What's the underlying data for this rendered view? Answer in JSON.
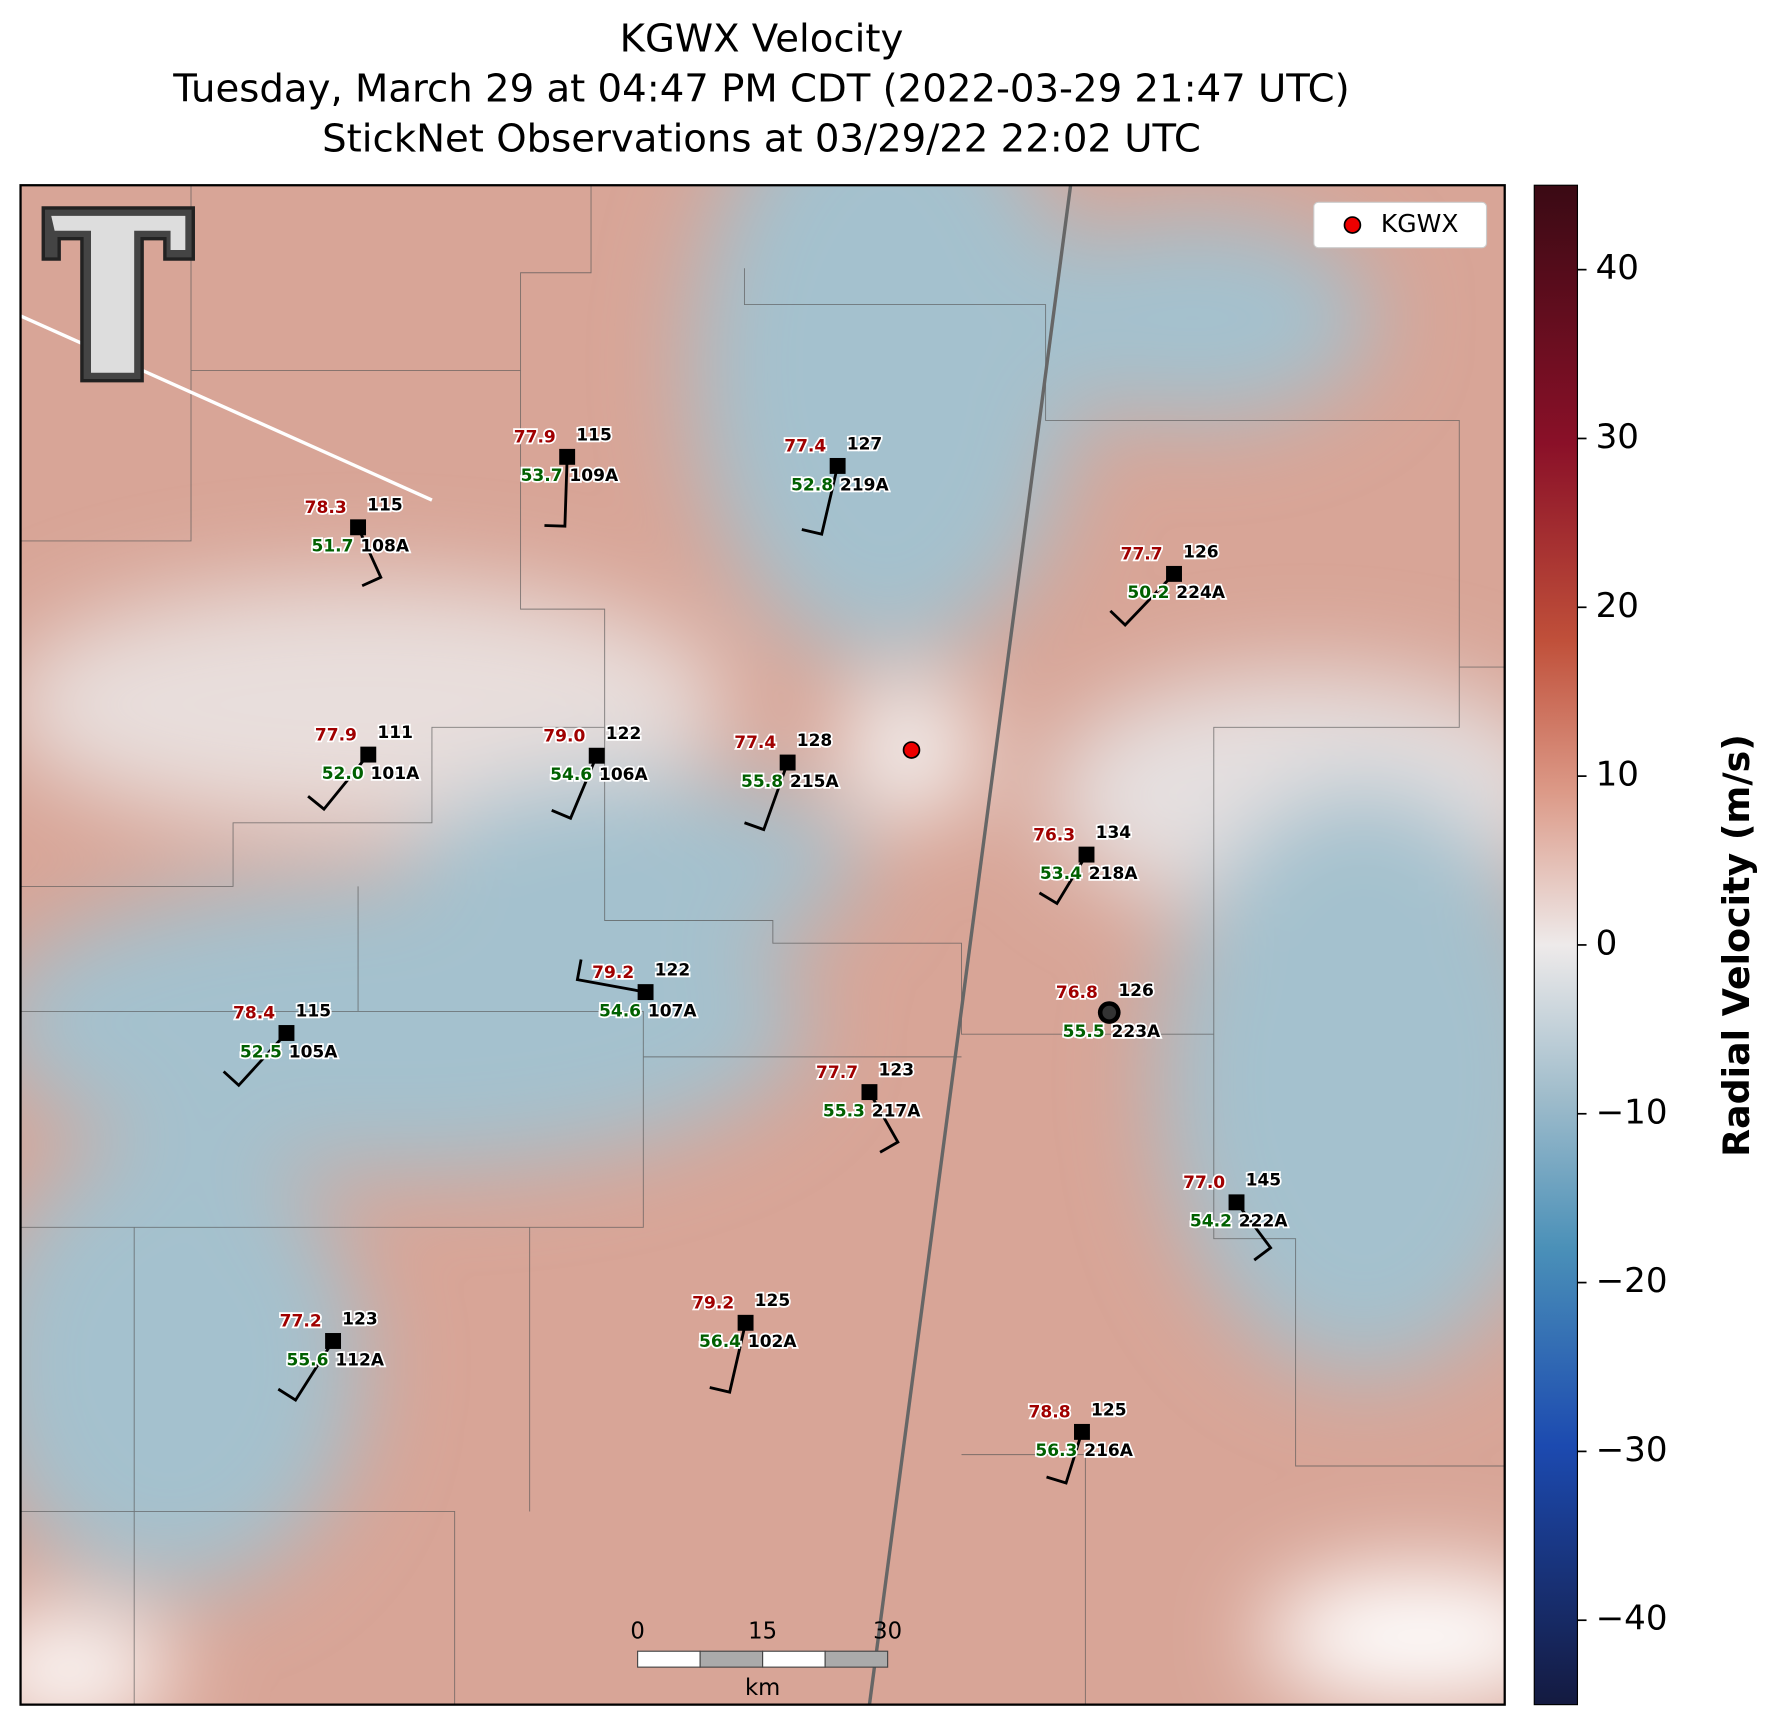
{
  "title": [
    "KGWX Velocity",
    "Tuesday, March 29 at 04:47 PM CDT (2022-03-29 21:47 UTC)",
    "StickNet Observations at 03/29/22 22:02 UTC"
  ],
  "legend": "KGWX",
  "scale_bar": {
    "ticks": [
      "0",
      "15",
      "30"
    ],
    "unit": "km"
  },
  "colorbar": {
    "label": "Radial Velocity (m/s)",
    "vlim": [
      -45,
      45
    ],
    "ticks": [
      {
        "value": -40,
        "label": "−40"
      },
      {
        "value": -30,
        "label": "−30"
      },
      {
        "value": -20,
        "label": "−20"
      },
      {
        "value": -10,
        "label": "−10"
      },
      0,
      10,
      20,
      30,
      40
    ]
  },
  "stations": [
    {
      "id": "108A",
      "temp": "78.3",
      "dew": "51.7",
      "value": "115"
    },
    {
      "id": "109A",
      "temp": "77.9",
      "dew": "53.7",
      "value": "115"
    },
    {
      "id": "219A",
      "temp": "77.4",
      "dew": "52.8",
      "value": "127"
    },
    {
      "id": "224A",
      "temp": "77.7",
      "dew": "50.2",
      "value": "126"
    },
    {
      "id": "101A",
      "temp": "77.9",
      "dew": "52.0",
      "value": "111"
    },
    {
      "id": "106A",
      "temp": "79.0",
      "dew": "54.6",
      "value": "122"
    },
    {
      "id": "215A",
      "temp": "77.4",
      "dew": "55.8",
      "value": "128"
    },
    {
      "id": "218A",
      "temp": "76.3",
      "dew": "53.4",
      "value": "134"
    },
    {
      "id": "107A",
      "temp": "79.2",
      "dew": "54.6",
      "value": "122"
    },
    {
      "id": "223A",
      "temp": "76.8",
      "dew": "55.5",
      "value": "126"
    },
    {
      "id": "105A",
      "temp": "78.4",
      "dew": "52.5",
      "value": "115"
    },
    {
      "id": "217A",
      "temp": "77.7",
      "dew": "55.3",
      "value": "123"
    },
    {
      "id": "222A",
      "temp": "77.0",
      "dew": "54.2",
      "value": "145"
    },
    {
      "id": "112A",
      "temp": "77.2",
      "dew": "55.6",
      "value": "123"
    },
    {
      "id": "102A",
      "temp": "79.2",
      "dew": "56.4",
      "value": "125"
    },
    {
      "id": "216A",
      "temp": "78.8",
      "dew": "56.3",
      "value": "125"
    }
  ]
}
